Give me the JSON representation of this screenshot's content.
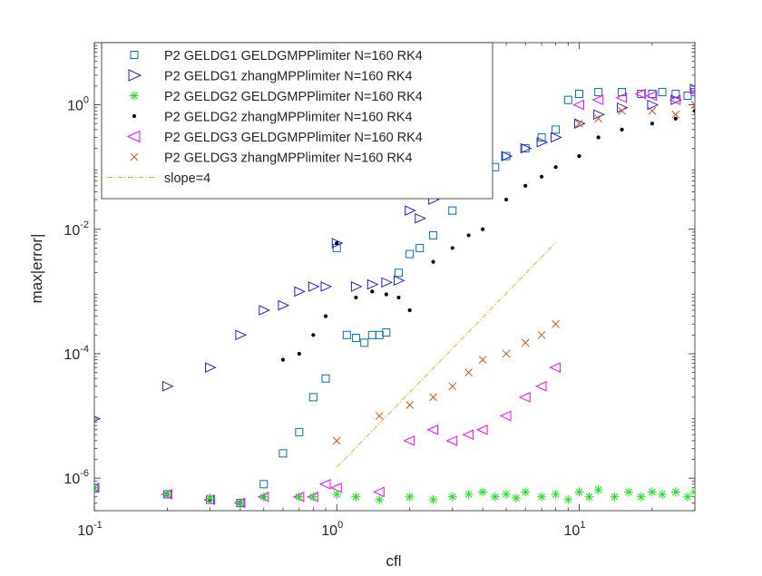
{
  "chart_data": {
    "type": "scatter",
    "title": "",
    "xlabel": "cfl",
    "ylabel": "max|error|",
    "xscale": "log",
    "yscale": "log",
    "xlim": [
      0.1,
      30
    ],
    "ylim": [
      3e-07,
      10
    ],
    "grid": false,
    "legend_position": "top-left",
    "x_ticks": [
      {
        "value": 0.1,
        "base": "10",
        "exp": "-1"
      },
      {
        "value": 1,
        "base": "10",
        "exp": "0"
      },
      {
        "value": 10,
        "base": "10",
        "exp": "1"
      }
    ],
    "y_ticks": [
      {
        "value": 1e-06,
        "base": "10",
        "exp": "-6"
      },
      {
        "value": 0.0001,
        "base": "10",
        "exp": "-4"
      },
      {
        "value": 0.01,
        "base": "10",
        "exp": "-2"
      },
      {
        "value": 1,
        "base": "10",
        "exp": "0"
      }
    ],
    "series": [
      {
        "name": "P2 GELDG1 GELDGMPPlimiter N=160 RK4",
        "marker": "square",
        "color": "#0072BD",
        "points": [
          [
            0.1,
            7e-07
          ],
          [
            0.2,
            5.5e-07
          ],
          [
            0.3,
            4.5e-07
          ],
          [
            0.4,
            4e-07
          ],
          [
            0.5,
            8e-07
          ],
          [
            0.6,
            2.5e-06
          ],
          [
            0.7,
            5.5e-06
          ],
          [
            0.8,
            2e-05
          ],
          [
            0.9,
            4e-05
          ],
          [
            1.0,
            0.005
          ],
          [
            1.1,
            0.0002
          ],
          [
            1.2,
            0.00018
          ],
          [
            1.3,
            0.00015
          ],
          [
            1.4,
            0.0002
          ],
          [
            1.5,
            0.0002
          ],
          [
            1.6,
            0.00022
          ],
          [
            1.8,
            0.002
          ],
          [
            2.0,
            0.004
          ],
          [
            2.2,
            0.005
          ],
          [
            2.5,
            0.008
          ],
          [
            3.0,
            0.02
          ],
          [
            3.5,
            0.04
          ],
          [
            4.0,
            0.06
          ],
          [
            4.5,
            0.1
          ],
          [
            5.0,
            0.15
          ],
          [
            6.0,
            0.2
          ],
          [
            7.0,
            0.3
          ],
          [
            8.0,
            0.4
          ],
          [
            9.0,
            1.2
          ],
          [
            10.0,
            1.5
          ],
          [
            12.0,
            1.6
          ],
          [
            15.0,
            1.6
          ],
          [
            18.0,
            1.5
          ],
          [
            20.0,
            1.5
          ],
          [
            22.0,
            1.6
          ],
          [
            25.0,
            1.5
          ],
          [
            28.0,
            1.4
          ],
          [
            30.0,
            1.6
          ]
        ]
      },
      {
        "name": "P2 GELDG1 zhangMPPlimiter N=160 RK4",
        "marker": "triangle-right",
        "color": "#1F1FD6",
        "points": [
          [
            0.1,
            9e-06
          ],
          [
            0.2,
            3e-05
          ],
          [
            0.3,
            6e-05
          ],
          [
            0.4,
            0.0002
          ],
          [
            0.5,
            0.0005
          ],
          [
            0.6,
            0.0006
          ],
          [
            0.7,
            0.001
          ],
          [
            0.8,
            0.0012
          ],
          [
            0.9,
            0.0012
          ],
          [
            1.0,
            0.006
          ],
          [
            1.2,
            0.0012
          ],
          [
            1.4,
            0.0013
          ],
          [
            1.6,
            0.0014
          ],
          [
            1.8,
            0.0015
          ],
          [
            2.0,
            0.02
          ],
          [
            2.2,
            0.015
          ],
          [
            2.5,
            0.03
          ],
          [
            3.0,
            0.05
          ],
          [
            3.5,
            0.08
          ],
          [
            4.0,
            0.1
          ],
          [
            5.0,
            0.15
          ],
          [
            6.0,
            0.2
          ],
          [
            7.0,
            0.25
          ],
          [
            8.0,
            0.3
          ],
          [
            10.0,
            0.5
          ],
          [
            12.0,
            0.7
          ],
          [
            15.0,
            0.9
          ],
          [
            20.0,
            1.0
          ],
          [
            25.0,
            1.2
          ],
          [
            30.0,
            1.8
          ]
        ]
      },
      {
        "name": "P2 GELDG2 GELDGMPPlimiter N=160 RK4",
        "marker": "asterisk",
        "color": "#19E619",
        "points": [
          [
            0.1,
            7e-07
          ],
          [
            0.2,
            5.5e-07
          ],
          [
            0.3,
            4.8e-07
          ],
          [
            0.4,
            4e-07
          ],
          [
            0.5,
            5e-07
          ],
          [
            0.7,
            5e-07
          ],
          [
            0.8,
            5e-07
          ],
          [
            1.0,
            5.5e-07
          ],
          [
            1.2,
            5e-07
          ],
          [
            1.5,
            4.5e-07
          ],
          [
            2.0,
            5e-07
          ],
          [
            2.5,
            4.5e-07
          ],
          [
            3.0,
            5e-07
          ],
          [
            3.5,
            5.5e-07
          ],
          [
            4.0,
            6e-07
          ],
          [
            4.5,
            5e-07
          ],
          [
            5.0,
            5.5e-07
          ],
          [
            5.5,
            4.8e-07
          ],
          [
            6.0,
            6e-07
          ],
          [
            7.0,
            5e-07
          ],
          [
            8.0,
            5.5e-07
          ],
          [
            9.0,
            4.5e-07
          ],
          [
            10.0,
            6e-07
          ],
          [
            11.0,
            5e-07
          ],
          [
            12.0,
            6.5e-07
          ],
          [
            14.0,
            5e-07
          ],
          [
            16.0,
            6e-07
          ],
          [
            18.0,
            5e-07
          ],
          [
            20.0,
            6e-07
          ],
          [
            22.0,
            5.5e-07
          ],
          [
            25.0,
            6e-07
          ],
          [
            28.0,
            5e-07
          ],
          [
            30.0,
            6e-07
          ]
        ]
      },
      {
        "name": "P2 GELDG2 zhangMPPlimiter N=160 RK4",
        "marker": "dot",
        "color": "#000000",
        "points": [
          [
            0.1,
            7e-07
          ],
          [
            0.2,
            5.5e-07
          ],
          [
            0.3,
            4.5e-07
          ],
          [
            0.4,
            4e-07
          ],
          [
            0.5,
            5e-07
          ],
          [
            0.6,
            8e-05
          ],
          [
            0.7,
            0.0001
          ],
          [
            0.8,
            0.0002
          ],
          [
            0.9,
            0.0004
          ],
          [
            1.0,
            0.006
          ],
          [
            1.2,
            0.0008
          ],
          [
            1.4,
            0.001
          ],
          [
            1.6,
            0.0009
          ],
          [
            1.8,
            0.0008
          ],
          [
            2.0,
            0.0005
          ],
          [
            2.5,
            0.003
          ],
          [
            3.0,
            0.005
          ],
          [
            3.5,
            0.008
          ],
          [
            4.0,
            0.01
          ],
          [
            5.0,
            0.03
          ],
          [
            6.0,
            0.05
          ],
          [
            7.0,
            0.07
          ],
          [
            8.0,
            0.1
          ],
          [
            10.0,
            0.15
          ],
          [
            12.0,
            0.3
          ],
          [
            15.0,
            0.4
          ],
          [
            20.0,
            0.5
          ],
          [
            25.0,
            0.6
          ],
          [
            30.0,
            0.8
          ]
        ]
      },
      {
        "name": "P2 GELDG3 GELDGMPPlimiter N=160 RK4",
        "marker": "triangle-left",
        "color": "#FF00FF",
        "points": [
          [
            0.1,
            7e-07
          ],
          [
            0.2,
            5.5e-07
          ],
          [
            0.3,
            4.5e-07
          ],
          [
            0.4,
            4e-07
          ],
          [
            0.5,
            5e-07
          ],
          [
            0.7,
            5e-07
          ],
          [
            0.8,
            5e-07
          ],
          [
            0.9,
            8e-07
          ],
          [
            1.0,
            7e-07
          ],
          [
            1.5,
            6e-07
          ],
          [
            2.0,
            4e-06
          ],
          [
            2.5,
            6e-06
          ],
          [
            3.0,
            4e-06
          ],
          [
            3.5,
            5e-06
          ],
          [
            4.0,
            6e-06
          ],
          [
            5.0,
            1e-05
          ],
          [
            6.0,
            2e-05
          ],
          [
            7.0,
            3e-05
          ],
          [
            8.0,
            6e-05
          ],
          [
            10.0,
            1.0
          ],
          [
            12.0,
            1.2
          ],
          [
            15.0,
            1.3
          ],
          [
            18.0,
            1.5
          ],
          [
            20.0,
            1.4
          ],
          [
            25.0,
            1.2
          ],
          [
            30.0,
            1.6
          ]
        ]
      },
      {
        "name": "P2 GELDG3 zhangMPPlimiter N=160 RK4",
        "marker": "x",
        "color": "#D95319",
        "points": [
          [
            1.0,
            4e-06
          ],
          [
            1.5,
            1e-05
          ],
          [
            2.0,
            1.5e-05
          ],
          [
            2.5,
            2e-05
          ],
          [
            3.0,
            3e-05
          ],
          [
            3.5,
            5e-05
          ],
          [
            4.0,
            8e-05
          ],
          [
            5.0,
            0.0001
          ],
          [
            6.0,
            0.00015
          ],
          [
            7.0,
            0.0002
          ],
          [
            8.0,
            0.0003
          ],
          [
            10.0,
            0.5
          ],
          [
            12.0,
            0.6
          ],
          [
            15.0,
            0.8
          ],
          [
            20.0,
            0.8
          ],
          [
            25.0,
            0.7
          ],
          [
            30.0,
            1.0
          ]
        ]
      },
      {
        "name": "slope=4",
        "marker": "line",
        "color": "#EDB120",
        "points": [
          [
            1.0,
            1.5e-06
          ],
          [
            8.0,
            0.0061
          ]
        ]
      }
    ]
  }
}
